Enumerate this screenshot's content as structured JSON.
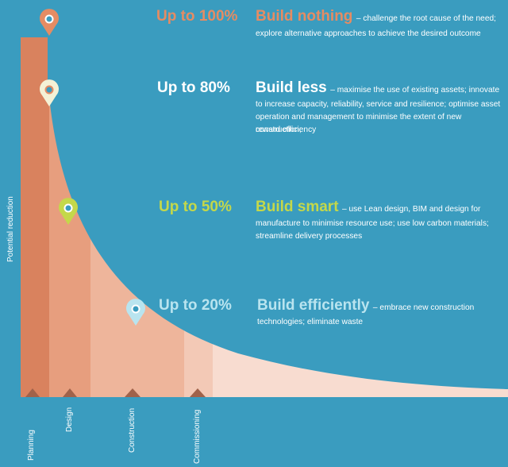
{
  "colors": {
    "background": "#3a9cbf",
    "band_planning": "#d9825e",
    "band_design": "#e79e7e",
    "band_construction": "#eeb59b",
    "band_commissioning": "#f3c9b6",
    "band_tail": "#f8dcd0",
    "nothing": "#e58c63",
    "less": "#ffffff",
    "smart": "#c4d84a",
    "efficiently": "#b9e4ef",
    "marker": "#a0624a"
  },
  "y_axis_label": "Potential reduction",
  "levels": [
    {
      "id": "nothing",
      "percent": "Up to 100%",
      "title": "Build nothing",
      "desc_lines": [
        "– challenge the root cause of the need;",
        "explore alternative approaches to achieve the desired outcome"
      ],
      "pin_icon": "location-pin-icon",
      "pin_color": "#e58c63"
    },
    {
      "id": "less",
      "percent": "Up to 80%",
      "title": "Build less",
      "desc_lines": [
        "– maximise the use of existing assets; innovate",
        "to increase capacity, reliability, service and resilience; optimise asset",
        "operation and management to minimise the extent of new construction;",
        "reward efficiency"
      ],
      "pin_icon": "location-pin-icon",
      "pin_color": "#f4f1d6"
    },
    {
      "id": "smart",
      "percent": "Up to 50%",
      "title": "Build smart",
      "desc_lines": [
        "– use Lean design, BIM and design for",
        "manufacture to minimise resource use; use low carbon materials;",
        "streamline delivery processes"
      ],
      "pin_icon": "location-pin-icon",
      "pin_color": "#c4d84a"
    },
    {
      "id": "efficiently",
      "percent": "Up to 20%",
      "title": "Build efficiently",
      "desc_lines": [
        "– embrace new construction",
        "technologies; eliminate waste"
      ],
      "pin_icon": "location-pin-icon",
      "pin_color": "#b9e4ef"
    }
  ],
  "stages": [
    "Planning",
    "Design",
    "Construction",
    "Commissioning"
  ]
}
